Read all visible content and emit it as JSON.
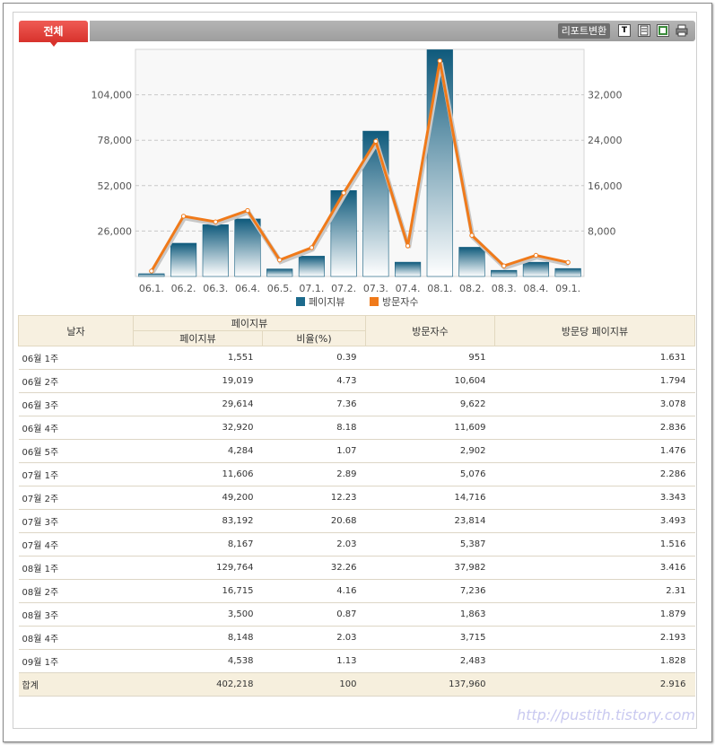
{
  "tabs": {
    "active": "전체"
  },
  "toolbar": {
    "report_label": "리포트변환",
    "text_icon_glyph": "T"
  },
  "chart_data": {
    "type": "bar+line",
    "categories": [
      "06.1.",
      "06.2.",
      "06.3.",
      "06.4.",
      "06.5.",
      "07.1.",
      "07.2.",
      "07.3.",
      "07.4.",
      "08.1.",
      "08.2.",
      "08.3.",
      "08.4.",
      "09.1."
    ],
    "series": [
      {
        "name": "페이지뷰",
        "type": "bar",
        "axis": "left",
        "color": "#1c6a8c",
        "values": [
          1551,
          19019,
          29614,
          32920,
          4284,
          11606,
          49200,
          83192,
          8167,
          129764,
          16715,
          3500,
          8148,
          4538
        ]
      },
      {
        "name": "방문자수",
        "type": "line",
        "axis": "right",
        "color": "#f07a1a",
        "values": [
          951,
          10604,
          9622,
          11609,
          2902,
          5076,
          14716,
          23814,
          5387,
          37982,
          7236,
          1863,
          3715,
          2483
        ]
      }
    ],
    "y_left": {
      "ticks": [
        "26,000",
        "52,000",
        "78,000",
        "104,000"
      ],
      "tick_values": [
        26000,
        52000,
        78000,
        104000
      ],
      "lim": [
        0,
        130000
      ]
    },
    "y_right": {
      "ticks": [
        "8,000",
        "16,000",
        "24,000",
        "32,000"
      ],
      "tick_values": [
        8000,
        16000,
        24000,
        32000
      ],
      "lim": [
        0,
        40000
      ]
    },
    "grid": true,
    "legend_position": "bottom"
  },
  "table": {
    "headers": {
      "date": "날자",
      "pageview_group": "페이지뷰",
      "pageview": "페이지뷰",
      "ratio": "비율(%)",
      "visitors": "방문자수",
      "per_visit": "방문당 페이지뷰"
    },
    "rows": [
      {
        "date": "06월 1주",
        "pageview": "1,551",
        "ratio": "0.39",
        "visitors": "951",
        "per_visit": "1.631"
      },
      {
        "date": "06월 2주",
        "pageview": "19,019",
        "ratio": "4.73",
        "visitors": "10,604",
        "per_visit": "1.794"
      },
      {
        "date": "06월 3주",
        "pageview": "29,614",
        "ratio": "7.36",
        "visitors": "9,622",
        "per_visit": "3.078"
      },
      {
        "date": "06월 4주",
        "pageview": "32,920",
        "ratio": "8.18",
        "visitors": "11,609",
        "per_visit": "2.836"
      },
      {
        "date": "06월 5주",
        "pageview": "4,284",
        "ratio": "1.07",
        "visitors": "2,902",
        "per_visit": "1.476"
      },
      {
        "date": "07월 1주",
        "pageview": "11,606",
        "ratio": "2.89",
        "visitors": "5,076",
        "per_visit": "2.286"
      },
      {
        "date": "07월 2주",
        "pageview": "49,200",
        "ratio": "12.23",
        "visitors": "14,716",
        "per_visit": "3.343"
      },
      {
        "date": "07월 3주",
        "pageview": "83,192",
        "ratio": "20.68",
        "visitors": "23,814",
        "per_visit": "3.493"
      },
      {
        "date": "07월 4주",
        "pageview": "8,167",
        "ratio": "2.03",
        "visitors": "5,387",
        "per_visit": "1.516"
      },
      {
        "date": "08월 1주",
        "pageview": "129,764",
        "ratio": "32.26",
        "visitors": "37,982",
        "per_visit": "3.416"
      },
      {
        "date": "08월 2주",
        "pageview": "16,715",
        "ratio": "4.16",
        "visitors": "7,236",
        "per_visit": "2.31"
      },
      {
        "date": "08월 3주",
        "pageview": "3,500",
        "ratio": "0.87",
        "visitors": "1,863",
        "per_visit": "1.879"
      },
      {
        "date": "08월 4주",
        "pageview": "8,148",
        "ratio": "2.03",
        "visitors": "3,715",
        "per_visit": "2.193"
      },
      {
        "date": "09월 1주",
        "pageview": "4,538",
        "ratio": "1.13",
        "visitors": "2,483",
        "per_visit": "1.828"
      }
    ],
    "total": {
      "date": "합계",
      "pageview": "402,218",
      "ratio": "100",
      "visitors": "137,960",
      "per_visit": "2.916"
    }
  },
  "watermark": "http://pustith.tistory.com"
}
